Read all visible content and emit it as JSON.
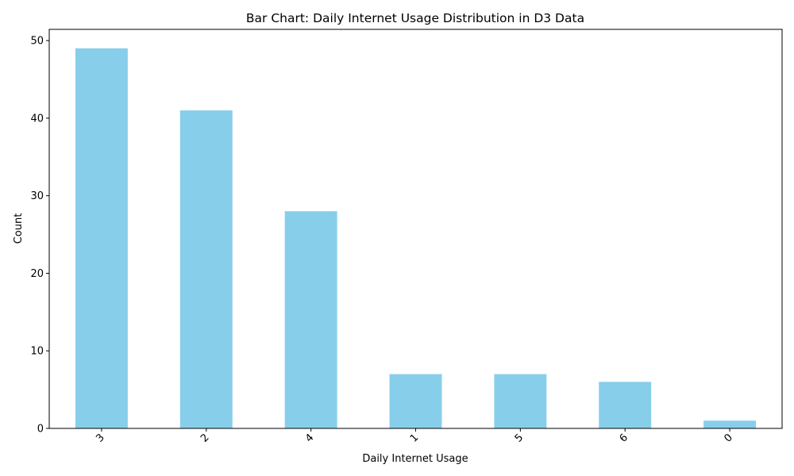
{
  "chart_data": {
    "type": "bar",
    "title": "Bar Chart: Daily Internet Usage Distribution in D3 Data",
    "xlabel": "Daily Internet Usage",
    "ylabel": "Count",
    "categories": [
      "3",
      "2",
      "4",
      "1",
      "5",
      "6",
      "0"
    ],
    "values": [
      49,
      41,
      28,
      7,
      7,
      6,
      1
    ],
    "ylim": [
      0,
      51.45
    ],
    "yticks": [
      0,
      10,
      20,
      30,
      40,
      50
    ],
    "bar_color": "#87ceeb",
    "grid": false,
    "legend": "none"
  }
}
